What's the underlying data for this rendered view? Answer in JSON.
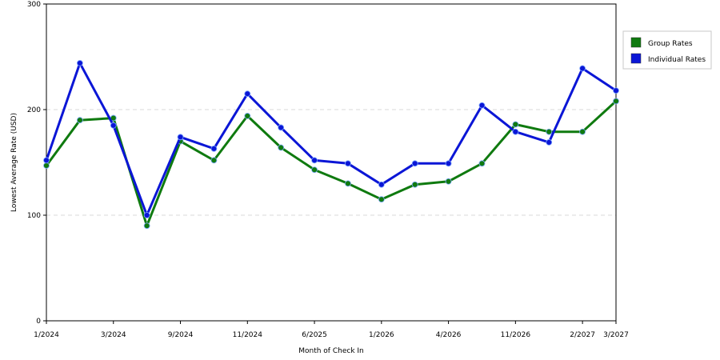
{
  "chart_data": {
    "type": "line",
    "title": "",
    "xlabel": "Month of Check In",
    "ylabel": "Lowest Average Rate (USD)",
    "ylim": [
      0,
      300
    ],
    "yticks": [
      0,
      100,
      200,
      300
    ],
    "grid": true,
    "legend_position": "top-right",
    "x_tick_labels": [
      "1/2024",
      "3/2024",
      "9/2024",
      "11/2024",
      "6/2025",
      "1/2026",
      "4/2026",
      "11/2026",
      "2/2027",
      "3/2027"
    ],
    "x_tick_indices": [
      0,
      2,
      4,
      6,
      8,
      10,
      12,
      14,
      16,
      17
    ],
    "series": [
      {
        "name": "Group Rates",
        "color": "#0f7a0f",
        "values": [
          147,
          190,
          192,
          90,
          170,
          152,
          194,
          164,
          143,
          130,
          115,
          129,
          132,
          149,
          186,
          179,
          179,
          208
        ]
      },
      {
        "name": "Individual Rates",
        "color": "#0b16d6",
        "values": [
          152,
          244,
          185,
          100,
          174,
          163,
          215,
          183,
          152,
          149,
          129,
          149,
          149,
          204,
          179,
          169,
          239,
          218
        ]
      }
    ]
  }
}
